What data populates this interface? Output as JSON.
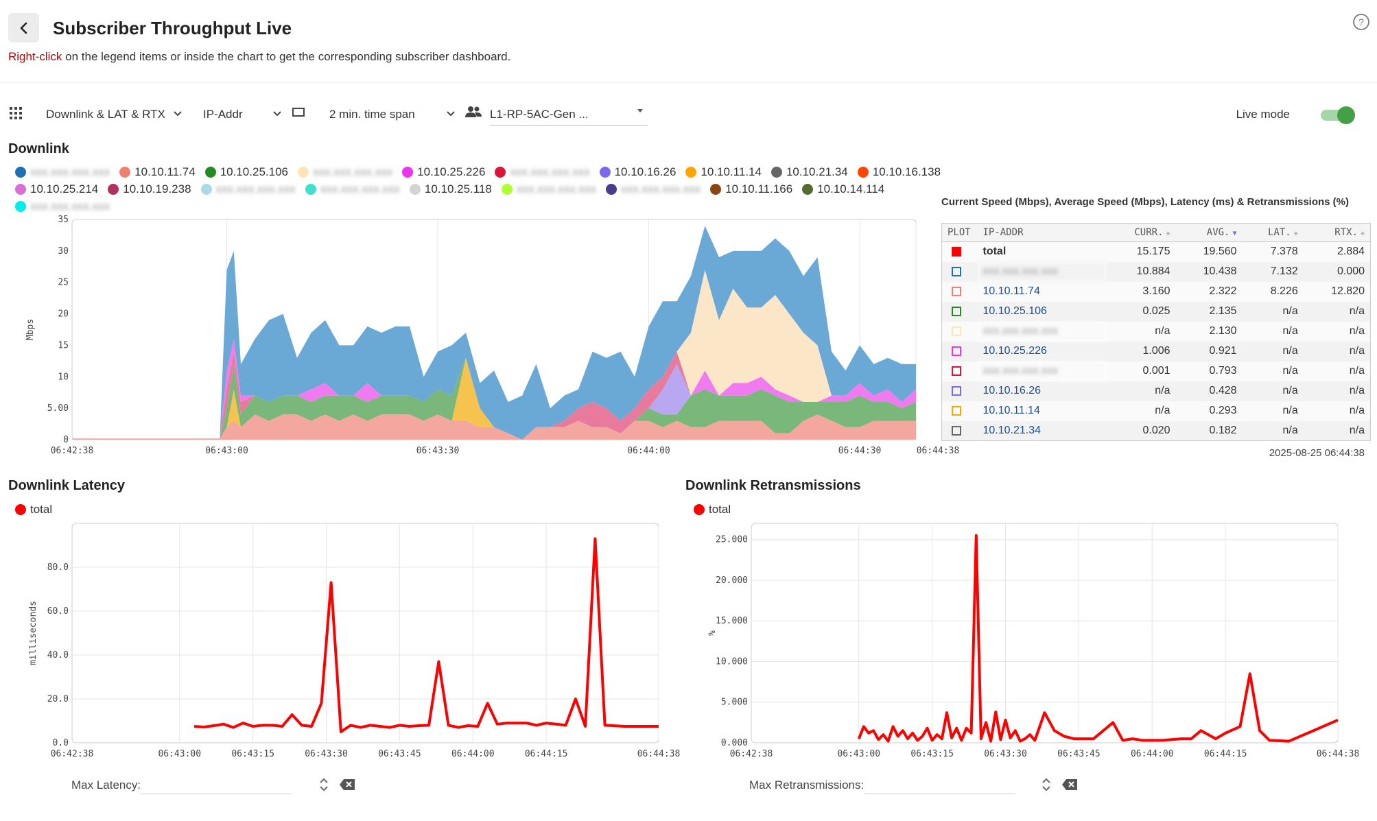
{
  "header": {
    "title": "Subscriber Throughput Live",
    "hint_red": "Right-click",
    "hint_rest": " on the legend items or inside the chart to get the corresponding subscriber dashboard."
  },
  "toolbar": {
    "metric": "Downlink & LAT & RTX",
    "grouping": "IP-Addr",
    "time_span": "2 min. time span",
    "subscriber_group": "L1-RP-5AC-Gen   ...",
    "live_label": "Live mode",
    "live_on": true
  },
  "downlink": {
    "title": "Downlink",
    "legend": [
      {
        "label": "xxx.xxx.xxx.xxx",
        "color": "#1f6fb5",
        "blurred": true
      },
      {
        "label": "10.10.11.74",
        "color": "#f08070",
        "blurred": false
      },
      {
        "label": "10.10.25.106",
        "color": "#228b22",
        "blurred": false
      },
      {
        "label": "xxx.xxx.xxx.xxx",
        "color": "#ffe4b5",
        "blurred": true
      },
      {
        "label": "10.10.25.226",
        "color": "#ee33ee",
        "blurred": false
      },
      {
        "label": "xxx.xxx.xxx.xxx",
        "color": "#dc143c",
        "blurred": true
      },
      {
        "label": "10.10.16.26",
        "color": "#7b68ee",
        "blurred": false
      },
      {
        "label": "10.10.11.14",
        "color": "#ffa500",
        "blurred": false
      },
      {
        "label": "10.10.21.34",
        "color": "#666666",
        "blurred": false
      },
      {
        "label": "10.10.16.138",
        "color": "#ff4500",
        "blurred": false
      },
      {
        "label": "10.10.25.214",
        "color": "#da70d6",
        "blurred": false
      },
      {
        "label": "10.10.19.238",
        "color": "#b03060",
        "blurred": false
      },
      {
        "label": "xxx.xxx.xxx.xxx",
        "color": "#add8e6",
        "blurred": true
      },
      {
        "label": "xxx.xxx.xxx.xxx",
        "color": "#40e0d0",
        "blurred": true
      },
      {
        "label": "10.10.25.118",
        "color": "#d3d3d3",
        "blurred": false
      },
      {
        "label": "xxx.xxx.xxx.xxx",
        "color": "#adff2f",
        "blurred": true
      },
      {
        "label": "xxx.xxx.xxx.xxx",
        "color": "#483d8b",
        "blurred": true
      },
      {
        "label": "10.10.11.166",
        "color": "#8b4513",
        "blurred": false
      },
      {
        "label": "10.10.14.114",
        "color": "#556b2f",
        "blurred": false
      },
      {
        "label": "xxx.xxx.xxx.xxx",
        "color": "#00eeee",
        "blurred": true
      }
    ]
  },
  "table": {
    "title": "Current Speed (Mbps), Average Speed (Mbps), Latency (ms) & Retransmissions (%)",
    "headers": [
      "PLOT",
      "IP-ADDR",
      "CURR.",
      "AVG.",
      "LAT.",
      "RTX."
    ],
    "rows": [
      {
        "color": "#ff0000",
        "filled": true,
        "ip": "total",
        "bold": true,
        "blurred": false,
        "curr": "15.175",
        "avg": "19.560",
        "lat": "7.378",
        "rtx": "2.884"
      },
      {
        "color": "#1f6fb5",
        "filled": false,
        "ip": "xxx.xxx.xxx.xxx",
        "blurred": true,
        "curr": "10.884",
        "avg": "10.438",
        "lat": "7.132",
        "rtx": "0.000"
      },
      {
        "color": "#f08070",
        "filled": false,
        "ip": "10.10.11.74",
        "blurred": false,
        "curr": "3.160",
        "avg": "2.322",
        "lat": "8.226",
        "rtx": "12.820"
      },
      {
        "color": "#228b22",
        "filled": false,
        "ip": "10.10.25.106",
        "blurred": false,
        "curr": "0.025",
        "avg": "2.135",
        "lat": "n/a",
        "rtx": "n/a"
      },
      {
        "color": "#ffe4b5",
        "filled": false,
        "ip": "xxx.xxx.xxx.xxx",
        "blurred": true,
        "curr": "n/a",
        "avg": "2.130",
        "lat": "n/a",
        "rtx": "n/a"
      },
      {
        "color": "#ee33ee",
        "filled": false,
        "ip": "10.10.25.226",
        "blurred": false,
        "curr": "1.006",
        "avg": "0.921",
        "lat": "n/a",
        "rtx": "n/a"
      },
      {
        "color": "#dc143c",
        "filled": false,
        "ip": "xxx.xxx.xxx.xxx",
        "blurred": true,
        "curr": "0.001",
        "avg": "0.793",
        "lat": "n/a",
        "rtx": "n/a"
      },
      {
        "color": "#7b68ee",
        "filled": false,
        "ip": "10.10.16.26",
        "blurred": false,
        "curr": "n/a",
        "avg": "0.428",
        "lat": "n/a",
        "rtx": "n/a"
      },
      {
        "color": "#ffa500",
        "filled": false,
        "ip": "10.10.11.14",
        "blurred": false,
        "curr": "n/a",
        "avg": "0.293",
        "lat": "n/a",
        "rtx": "n/a"
      },
      {
        "color": "#666666",
        "filled": false,
        "ip": "10.10.21.34",
        "blurred": false,
        "curr": "0.020",
        "avg": "0.182",
        "lat": "n/a",
        "rtx": "n/a"
      }
    ],
    "timestamp": "2025-08-25 06:44:38"
  },
  "latency": {
    "title": "Downlink Latency",
    "legend_label": "total",
    "max_label": "Max Latency:"
  },
  "retrans": {
    "title": "Downlink Retransmissions",
    "legend_label": "total",
    "max_label": "Max Retransmissions:"
  },
  "chart_data": [
    {
      "type": "area",
      "stacked": true,
      "ylabel": "Mbps",
      "ylim": [
        0,
        35
      ],
      "yticks": [
        "0",
        "5.00",
        "10",
        "15",
        "20",
        "25",
        "30",
        "35"
      ],
      "xticks": [
        "06:42:38",
        "06:43:00",
        "06:43:30",
        "06:44:00",
        "06:44:30",
        "06:44:38"
      ],
      "x_seconds": [
        0,
        7,
        14,
        21,
        22,
        23,
        24,
        26,
        28,
        30,
        32,
        34,
        36,
        38,
        40,
        42,
        44,
        46,
        48,
        50,
        52,
        54,
        56,
        58,
        60,
        62,
        64,
        66,
        68,
        70,
        72,
        74,
        76,
        78,
        80,
        82,
        84,
        86,
        88,
        90,
        92,
        94,
        96,
        98,
        100,
        102,
        104,
        106,
        108,
        110,
        112,
        114,
        116,
        118,
        120
      ],
      "series": [
        {
          "color": "#f4a79e",
          "values": [
            0.2,
            0.2,
            0.2,
            0.2,
            2,
            3,
            2,
            4,
            3,
            4,
            4,
            3,
            4,
            3,
            4,
            3,
            4,
            4,
            4,
            3,
            4,
            3,
            3,
            2,
            2,
            1,
            0,
            2,
            2,
            2,
            3,
            2,
            2,
            1,
            3,
            3,
            2,
            3,
            2,
            2,
            3,
            3,
            3,
            3,
            1,
            1,
            3,
            4,
            3,
            2,
            2,
            3,
            3,
            3,
            3
          ]
        },
        {
          "color": "#f7c34f",
          "values": [
            0,
            0,
            0,
            0,
            0,
            5,
            0,
            0,
            0,
            0,
            0,
            0,
            0,
            0,
            0,
            0,
            0,
            0,
            0,
            0,
            0,
            0,
            10,
            3,
            0,
            0,
            0,
            0,
            0,
            0,
            0,
            0,
            0,
            0,
            0,
            0,
            0,
            0,
            0,
            0,
            0,
            0,
            0,
            0,
            0,
            0,
            0,
            0,
            0,
            0,
            0,
            0,
            0,
            0,
            0
          ]
        },
        {
          "color": "#79b77a",
          "values": [
            0,
            0,
            0,
            0,
            3,
            4,
            2,
            3,
            3,
            3,
            3,
            3,
            3,
            4,
            3,
            3,
            3,
            3,
            3,
            3,
            4,
            4,
            0,
            0,
            0,
            0,
            0,
            0,
            0,
            0,
            0,
            0,
            0,
            0,
            0,
            2,
            2,
            1,
            5,
            6,
            4,
            4,
            4,
            5,
            6,
            5,
            3,
            2,
            3,
            4,
            5,
            3,
            3,
            2,
            3
          ]
        },
        {
          "color": "#b9a7f2",
          "values": [
            0,
            0,
            0,
            0,
            0,
            0,
            0,
            0,
            0,
            0,
            0,
            0,
            0,
            0,
            0,
            0,
            0,
            0,
            0,
            0,
            0,
            0,
            0,
            0,
            0,
            0,
            0,
            0,
            0,
            0,
            0,
            0,
            0,
            0,
            0,
            0,
            4,
            8,
            0,
            0,
            0,
            0,
            0,
            0,
            0,
            0,
            0,
            0,
            0,
            0,
            0,
            0,
            0,
            0,
            0
          ]
        },
        {
          "color": "#e87a9d",
          "values": [
            0,
            0,
            0,
            0,
            3,
            2,
            2,
            0,
            0,
            0,
            0,
            0,
            0,
            0,
            0,
            0,
            0,
            0,
            0,
            0,
            0,
            0,
            0,
            0,
            0,
            0,
            0,
            0,
            0,
            1,
            2,
            4,
            3,
            2,
            2,
            3,
            2,
            2,
            0,
            0,
            0,
            0,
            0,
            0,
            0,
            0,
            0,
            0,
            0,
            0,
            0,
            0,
            0,
            0,
            0
          ]
        },
        {
          "color": "#f07bf0",
          "values": [
            0,
            0,
            0,
            0,
            3,
            2,
            1,
            0,
            0,
            0,
            0,
            2,
            2,
            0,
            0,
            3,
            0,
            0,
            0,
            0,
            0,
            0,
            0,
            0,
            0,
            0,
            0,
            0,
            0,
            0,
            0,
            0,
            0,
            0,
            0,
            0,
            0,
            0,
            0,
            3,
            0,
            2,
            2,
            2,
            1,
            1,
            0,
            0,
            1,
            1,
            2,
            1,
            2,
            1,
            2
          ]
        },
        {
          "color": "#fbe6c8",
          "values": [
            0,
            0,
            0,
            0,
            0,
            0,
            0,
            0,
            0,
            0,
            0,
            0,
            0,
            0,
            0,
            0,
            0,
            0,
            0,
            0,
            0,
            0,
            0,
            0,
            0,
            0,
            0,
            0,
            0,
            0,
            0,
            0,
            0,
            0,
            0,
            0,
            0,
            0,
            10,
            16,
            12,
            15,
            12,
            11,
            15,
            13,
            11,
            9,
            0,
            0,
            0,
            0,
            0,
            0,
            0
          ]
        },
        {
          "color": "#6aa9d5",
          "values": [
            0,
            0,
            0,
            0,
            16,
            14,
            5,
            9,
            13,
            13,
            6,
            9,
            10,
            8,
            8,
            9,
            10,
            11,
            11,
            4,
            6,
            8,
            4,
            4,
            9,
            5,
            7,
            10,
            3,
            4,
            3,
            8,
            8,
            11,
            5,
            10,
            12,
            8,
            9,
            7,
            10,
            6,
            9,
            9,
            9,
            10,
            9,
            14,
            7,
            4,
            6,
            5,
            5,
            6,
            4
          ]
        }
      ]
    },
    {
      "type": "line",
      "series": [
        {
          "name": "total",
          "color": "#ff0000",
          "values": [
            7.5,
            7.2,
            7.8,
            8.5,
            7.0,
            9.0,
            7.5,
            8.0,
            8.0,
            7.5,
            12.8,
            8.0,
            7.5,
            18.0,
            73.0,
            5.0,
            8.0,
            7.0,
            8.0,
            7.5,
            7.0,
            8.0,
            7.5,
            7.8,
            8.0,
            37.0,
            8.0,
            7.0,
            7.8,
            7.5,
            18.0,
            8.5,
            9.0,
            9.0,
            9.0,
            8.0,
            9.0,
            8.5,
            8.0,
            20.0,
            7.5,
            93.0,
            8.0,
            7.5,
            7.5
          ]
        }
      ],
      "x_seconds": [
        25,
        27,
        29,
        31,
        33,
        35,
        37,
        39,
        41,
        43,
        45,
        47,
        49,
        51,
        53,
        55,
        57,
        59,
        61,
        63,
        65,
        67,
        69,
        71,
        73,
        75,
        77,
        79,
        81,
        83,
        85,
        87,
        89,
        91,
        93,
        95,
        97,
        99,
        101,
        103,
        105,
        107,
        109,
        113,
        120
      ],
      "ylabel": "milliseconds",
      "ylim": [
        0,
        100
      ],
      "yticks": [
        "0.0",
        "20.0",
        "40.0",
        "60.0",
        "80.0"
      ],
      "xticks": [
        "06:42:38",
        "06:43:00",
        "06:43:15",
        "06:43:30",
        "06:43:45",
        "06:44:00",
        "06:44:15",
        "06:44:38"
      ]
    },
    {
      "type": "line",
      "series": [
        {
          "name": "total",
          "color": "#ff0000",
          "values": [
            0.5,
            2.0,
            1.2,
            1.5,
            0.4,
            1.0,
            0.2,
            2.0,
            0.8,
            1.5,
            0.5,
            1.2,
            0.3,
            0.8,
            1.8,
            0.3,
            1.0,
            0.5,
            3.7,
            0.6,
            1.8,
            0.3,
            1.8,
            1.2,
            25.5,
            0.5,
            2.5,
            0.2,
            3.8,
            0.4,
            2.8,
            0.6,
            1.5,
            0.2,
            0.5,
            1.0,
            0.3,
            3.7,
            1.5,
            0.8,
            0.5,
            0.5,
            2.5,
            0.3,
            0.5,
            0.3,
            0.3,
            0.5,
            0.5,
            1.5,
            0.5,
            1.2,
            2.0,
            8.5,
            1.5,
            0.3,
            0.2,
            2.8
          ]
        }
      ],
      "x_seconds": [
        22,
        23,
        24,
        25,
        26,
        27,
        28,
        29,
        30,
        31,
        32,
        33,
        34,
        35,
        36,
        37,
        38,
        39,
        40,
        41,
        42,
        43,
        44,
        45,
        46,
        47,
        48,
        49,
        50,
        51,
        52,
        53,
        54,
        55,
        56,
        57,
        58,
        60,
        62,
        64,
        66,
        70,
        74,
        76,
        78,
        80,
        84,
        88,
        90,
        92,
        95,
        97,
        100,
        102,
        104,
        106,
        110,
        120
      ],
      "ylabel": "%",
      "ylim": [
        0,
        27
      ],
      "yticks": [
        "0.000",
        "5.000",
        "10.000",
        "15.000",
        "20.000",
        "25.000"
      ],
      "xticks": [
        "06:42:38",
        "06:43:00",
        "06:43:15",
        "06:43:30",
        "06:43:45",
        "06:44:00",
        "06:44:15",
        "06:44:38"
      ]
    }
  ]
}
